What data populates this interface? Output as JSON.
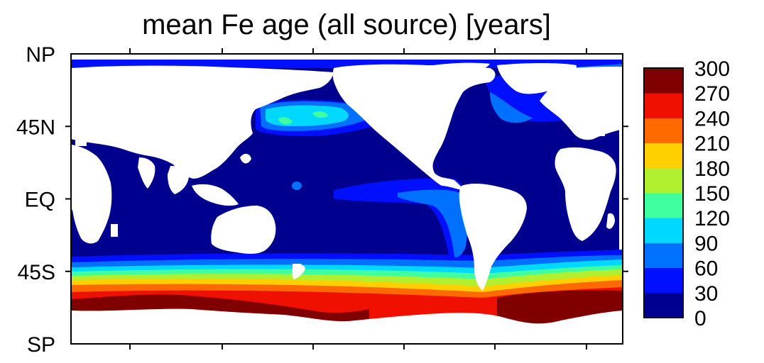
{
  "chart_data": {
    "type": "heatmap",
    "title": "mean Fe age (all source) [years]",
    "y_ticks": [
      "NP",
      "45N",
      "EQ",
      "45S",
      "SP"
    ],
    "colorbar_ticks": [
      "300",
      "270",
      "240",
      "210",
      "180",
      "150",
      "120",
      "90",
      "60",
      "30",
      "0"
    ],
    "colorbar_range": [
      0,
      300
    ],
    "colorbar_levels": [
      {
        "range": [
          0,
          30
        ],
        "color": "#00008f"
      },
      {
        "range": [
          30,
          60
        ],
        "color": "#0010ff"
      },
      {
        "range": [
          60,
          90
        ],
        "color": "#0070ff"
      },
      {
        "range": [
          90,
          120
        ],
        "color": "#00d8ff"
      },
      {
        "range": [
          120,
          150
        ],
        "color": "#40ffa0"
      },
      {
        "range": [
          150,
          180
        ],
        "color": "#b0f030"
      },
      {
        "range": [
          180,
          210
        ],
        "color": "#ffd000"
      },
      {
        "range": [
          210,
          240
        ],
        "color": "#ff6a00"
      },
      {
        "range": [
          240,
          270
        ],
        "color": "#ef1000"
      },
      {
        "range": [
          270,
          300
        ],
        "color": "#800000"
      }
    ],
    "land_color": "#ffffff",
    "zones": [
      {
        "name": "open-ocean",
        "value_range": [
          0,
          30
        ]
      },
      {
        "name": "north-pacific-subpolar",
        "value_range": [
          60,
          150
        ]
      },
      {
        "name": "eastern-equatorial-pacific",
        "value_range": [
          30,
          90
        ]
      },
      {
        "name": "southern-ocean",
        "value_range": [
          30,
          300
        ]
      }
    ]
  }
}
